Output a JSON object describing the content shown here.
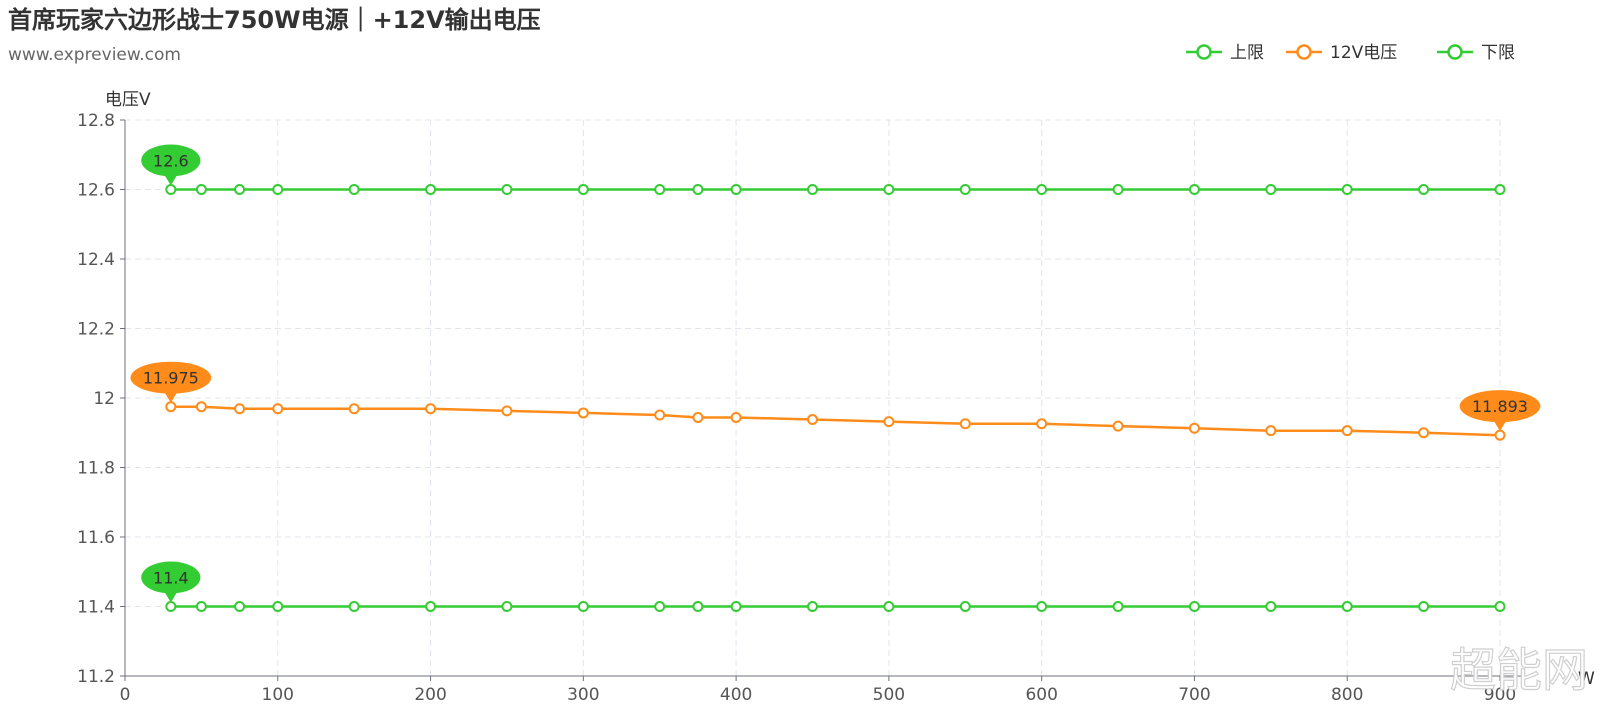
{
  "chart_data": {
    "type": "line",
    "title": "首席玩家六边形战士750W电源｜+12V输出电压",
    "subtitle": "www.expreview.com",
    "ylabel": "电压V",
    "xlabel": "W",
    "ylim": [
      11.2,
      12.8
    ],
    "xlim": [
      0,
      900
    ],
    "y_ticks": [
      "12.8",
      "12.6",
      "12.4",
      "12.2",
      "12",
      "11.8",
      "11.6",
      "11.4",
      "11.2"
    ],
    "x_ticks": [
      "0",
      "100",
      "200",
      "300",
      "400",
      "500",
      "600",
      "700",
      "800",
      "900"
    ],
    "grid": true,
    "legend_position": "top-right",
    "x": [
      30,
      50,
      75,
      100,
      150,
      200,
      250,
      300,
      350,
      375,
      400,
      450,
      500,
      550,
      600,
      650,
      700,
      750,
      800,
      850,
      900
    ],
    "series": [
      {
        "name": "上限",
        "color": "#33cc33",
        "values": [
          12.6,
          12.6,
          12.6,
          12.6,
          12.6,
          12.6,
          12.6,
          12.6,
          12.6,
          12.6,
          12.6,
          12.6,
          12.6,
          12.6,
          12.6,
          12.6,
          12.6,
          12.6,
          12.6,
          12.6,
          12.6
        ],
        "markpoints": [
          {
            "x": 30,
            "y": 12.6,
            "label": "12.6"
          }
        ]
      },
      {
        "name": "12V电压",
        "color": "#ff8c1a",
        "values": [
          11.975,
          11.975,
          11.969,
          11.969,
          11.969,
          11.969,
          11.963,
          11.957,
          11.951,
          11.944,
          11.944,
          11.938,
          11.932,
          11.926,
          11.926,
          11.919,
          11.913,
          11.906,
          11.906,
          11.9,
          11.893
        ],
        "markpoints": [
          {
            "x": 30,
            "y": 11.975,
            "label": "11.975"
          },
          {
            "x": 900,
            "y": 11.893,
            "label": "11.893"
          }
        ]
      },
      {
        "name": "下限",
        "color": "#33cc33",
        "values": [
          11.4,
          11.4,
          11.4,
          11.4,
          11.4,
          11.4,
          11.4,
          11.4,
          11.4,
          11.4,
          11.4,
          11.4,
          11.4,
          11.4,
          11.4,
          11.4,
          11.4,
          11.4,
          11.4,
          11.4,
          11.4
        ],
        "markpoints": [
          {
            "x": 30,
            "y": 11.4,
            "label": "11.4"
          }
        ]
      }
    ]
  },
  "watermark": "超能网"
}
